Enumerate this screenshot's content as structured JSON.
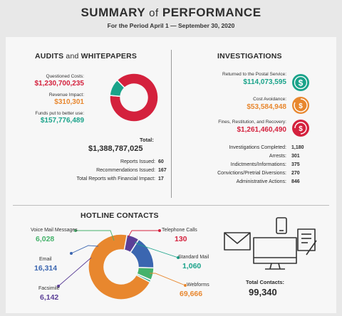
{
  "header": {
    "title_a": "SUMMARY",
    "title_of": "of",
    "title_b": "PERFORMANCE",
    "subtitle": "For the Period April 1 — September 30, 2020"
  },
  "audits": {
    "title_a": "AUDITS",
    "title_and": "and",
    "title_b": "WHITEPAPERS",
    "items": [
      {
        "label": "Questioned Costs:",
        "value": "$1,230,700,235",
        "color": "#d4213d"
      },
      {
        "label": "Revenue Impact:",
        "value": "$310,301",
        "color": "#e8872e"
      },
      {
        "label": "Funds put to better use:",
        "value": "$157,776,489",
        "color": "#1aa38a"
      }
    ],
    "total_label": "Total:",
    "total_value": "$1,388,787,025",
    "reports": [
      {
        "label": "Reports Issued:",
        "value": "60"
      },
      {
        "label": "Recommendations Issued:",
        "value": "167"
      },
      {
        "label": "Total Reports with Financial Impact:",
        "value": "17"
      }
    ]
  },
  "investigations": {
    "title": "INVESTIGATIONS",
    "items": [
      {
        "label": "Returned to the Postal Service:",
        "value": "$114,073,595",
        "color": "#1aa38a",
        "icon": "dollar-icon"
      },
      {
        "label": "Cost Avoidance:",
        "value": "$53,584,948",
        "color": "#e8872e",
        "icon": "cost-avoidance-icon"
      },
      {
        "label": "Fines, Restitution, and Recovery:",
        "value": "$1,261,460,490",
        "color": "#d4213d",
        "icon": "recovery-icon"
      }
    ],
    "stats": [
      {
        "label": "Investigations Completed:",
        "value": "1,180"
      },
      {
        "label": "Arrests:",
        "value": "301"
      },
      {
        "label": "Indictments/Informations:",
        "value": "375"
      },
      {
        "label": "Convictions/Pretrial Diversions:",
        "value": "270"
      },
      {
        "label": "Administrative Actions:",
        "value": "846"
      }
    ]
  },
  "hotline": {
    "title": "HOTLINE CONTACTS",
    "items": [
      {
        "label": "Voice Mail Messages",
        "value": "6,028",
        "color": "#45b26b"
      },
      {
        "label": "Email",
        "value": "16,314",
        "color": "#3b66b0"
      },
      {
        "label": "Facsimile",
        "value": "6,142",
        "color": "#5b3f97"
      },
      {
        "label": "Telephone Calls",
        "value": "130",
        "color": "#d4213d"
      },
      {
        "label": "Standard Mail",
        "value": "1,060",
        "color": "#1aa38a"
      },
      {
        "label": "Webforms",
        "value": "69,666",
        "color": "#e8872e"
      }
    ],
    "total_label": "Total Contacts:",
    "total_value": "99,340"
  },
  "chart_data": [
    {
      "type": "pie",
      "title": "AUDITS and WHITEPAPERS",
      "categories": [
        "Questioned Costs",
        "Revenue Impact",
        "Funds put to better use"
      ],
      "values": [
        1230700235,
        310301,
        157776489
      ],
      "colors": [
        "#d4213d",
        "#e8872e",
        "#1aa38a"
      ]
    },
    {
      "type": "pie",
      "title": "HOTLINE CONTACTS",
      "categories": [
        "Webforms",
        "Facsimile",
        "Email",
        "Voice Mail Messages",
        "Telephone Calls",
        "Standard Mail"
      ],
      "values": [
        69666,
        6142,
        16314,
        6028,
        130,
        1060
      ],
      "colors": [
        "#e8872e",
        "#5b3f97",
        "#3b66b0",
        "#45b26b",
        "#d4213d",
        "#1aa38a"
      ]
    }
  ]
}
